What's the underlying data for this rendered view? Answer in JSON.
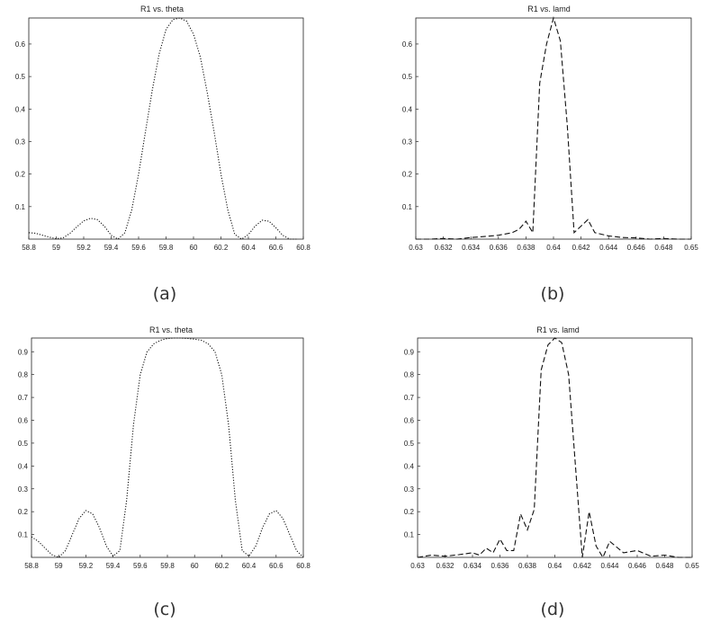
{
  "chart_data": [
    {
      "type": "line",
      "panel_label": "(a)",
      "title": "R1 vs. theta",
      "xlabel": "",
      "ylabel": "",
      "xlim": [
        58.8,
        60.8
      ],
      "ylim": [
        0,
        0.68
      ],
      "xticks": [
        "58.8",
        "59",
        "59.2",
        "59.4",
        "59.6",
        "59.8",
        "60",
        "60.2",
        "60.4",
        "60.6",
        "60.8"
      ],
      "yticks": [
        "0.1",
        "0.2",
        "0.3",
        "0.4",
        "0.5",
        "0.6"
      ],
      "grid": false,
      "series": [
        {
          "line_style": "dotted",
          "x": [
            58.8,
            58.85,
            58.9,
            58.95,
            59.0,
            59.05,
            59.1,
            59.15,
            59.2,
            59.25,
            59.3,
            59.35,
            59.4,
            59.45,
            59.5,
            59.55,
            59.6,
            59.65,
            59.7,
            59.75,
            59.8,
            59.85,
            59.9,
            59.95,
            60.0,
            60.05,
            60.1,
            60.15,
            60.2,
            60.25,
            60.3,
            60.35,
            60.4,
            60.45,
            60.5,
            60.55,
            60.6,
            60.65,
            60.7,
            60.75
          ],
          "y": [
            0.02,
            0.018,
            0.012,
            0.006,
            0.001,
            0.004,
            0.018,
            0.038,
            0.056,
            0.064,
            0.06,
            0.04,
            0.012,
            0.0,
            0.02,
            0.09,
            0.2,
            0.33,
            0.46,
            0.57,
            0.645,
            0.675,
            0.68,
            0.67,
            0.63,
            0.56,
            0.45,
            0.33,
            0.2,
            0.09,
            0.015,
            0.0,
            0.014,
            0.04,
            0.058,
            0.055,
            0.035,
            0.012,
            0.0,
            0.0
          ]
        }
      ]
    },
    {
      "type": "line",
      "panel_label": "(b)",
      "title": "R1 vs. lamd",
      "xlabel": "",
      "ylabel": "",
      "xlim": [
        0.63,
        0.65
      ],
      "ylim": [
        0,
        0.68
      ],
      "xticks": [
        "0.63",
        "0.632",
        "0.634",
        "0.636",
        "0.638",
        "0.64",
        "0.642",
        "0.644",
        "0.646",
        "0.648",
        "0.65"
      ],
      "yticks": [
        "0.1",
        "0.2",
        "0.3",
        "0.4",
        "0.5",
        "0.6"
      ],
      "grid": false,
      "series": [
        {
          "line_style": "dashed",
          "x": [
            0.63,
            0.631,
            0.632,
            0.633,
            0.634,
            0.635,
            0.636,
            0.637,
            0.6375,
            0.638,
            0.6385,
            0.639,
            0.6395,
            0.64,
            0.6405,
            0.641,
            0.6415,
            0.642,
            0.6425,
            0.643,
            0.644,
            0.645,
            0.646,
            0.647,
            0.648,
            0.649,
            0.65
          ],
          "y": [
            0.0,
            0.0,
            0.002,
            0.0,
            0.005,
            0.008,
            0.012,
            0.02,
            0.03,
            0.055,
            0.02,
            0.48,
            0.6,
            0.68,
            0.61,
            0.35,
            0.02,
            0.04,
            0.06,
            0.02,
            0.01,
            0.005,
            0.004,
            0.0,
            0.002,
            0.0,
            0.0
          ]
        }
      ]
    },
    {
      "type": "line",
      "panel_label": "(c)",
      "title": "R1 vs. theta",
      "xlabel": "",
      "ylabel": "",
      "xlim": [
        58.8,
        60.8
      ],
      "ylim": [
        0,
        0.96
      ],
      "xticks": [
        "58.8",
        "59",
        "59.2",
        "59.4",
        "59.6",
        "59.8",
        "60",
        "60.2",
        "60.4",
        "60.6",
        "60.8"
      ],
      "yticks": [
        "0.1",
        "0.2",
        "0.3",
        "0.4",
        "0.5",
        "0.6",
        "0.7",
        "0.8",
        "0.9"
      ],
      "grid": false,
      "series": [
        {
          "line_style": "dotted",
          "x": [
            58.8,
            58.85,
            58.9,
            58.95,
            59.0,
            59.05,
            59.1,
            59.15,
            59.2,
            59.25,
            59.3,
            59.35,
            59.4,
            59.45,
            59.5,
            59.55,
            59.6,
            59.65,
            59.7,
            59.75,
            59.8,
            59.85,
            59.9,
            59.95,
            60.0,
            60.05,
            60.1,
            60.15,
            60.2,
            60.25,
            60.3,
            60.35,
            60.4,
            60.45,
            60.5,
            60.55,
            60.6,
            60.65,
            60.7,
            60.75,
            60.8
          ],
          "y": [
            0.09,
            0.07,
            0.04,
            0.012,
            0.0,
            0.03,
            0.1,
            0.17,
            0.205,
            0.19,
            0.13,
            0.05,
            0.005,
            0.03,
            0.25,
            0.58,
            0.8,
            0.9,
            0.935,
            0.95,
            0.958,
            0.96,
            0.96,
            0.958,
            0.955,
            0.95,
            0.935,
            0.9,
            0.8,
            0.58,
            0.25,
            0.03,
            0.005,
            0.05,
            0.13,
            0.19,
            0.205,
            0.17,
            0.1,
            0.03,
            0.0
          ]
        }
      ]
    },
    {
      "type": "line",
      "panel_label": "(d)",
      "title": "R1 vs. lamd",
      "xlabel": "",
      "ylabel": "",
      "xlim": [
        0.63,
        0.65
      ],
      "ylim": [
        0,
        0.96
      ],
      "xticks": [
        "0.63",
        "0.632",
        "0.634",
        "0.636",
        "0.638",
        "0.64",
        "0.642",
        "0.644",
        "0.646",
        "0.648",
        "0.65"
      ],
      "yticks": [
        "0.1",
        "0.2",
        "0.3",
        "0.4",
        "0.5",
        "0.6",
        "0.7",
        "0.8",
        "0.9"
      ],
      "grid": false,
      "series": [
        {
          "line_style": "dashed",
          "x": [
            0.63,
            0.631,
            0.632,
            0.633,
            0.634,
            0.6345,
            0.635,
            0.6355,
            0.636,
            0.6365,
            0.637,
            0.6375,
            0.638,
            0.6385,
            0.639,
            0.6395,
            0.64,
            0.6405,
            0.641,
            0.6415,
            0.642,
            0.6425,
            0.643,
            0.6435,
            0.644,
            0.645,
            0.646,
            0.647,
            0.648,
            0.649,
            0.65
          ],
          "y": [
            0.0,
            0.01,
            0.005,
            0.012,
            0.02,
            0.01,
            0.04,
            0.02,
            0.08,
            0.03,
            0.03,
            0.19,
            0.12,
            0.21,
            0.82,
            0.93,
            0.96,
            0.94,
            0.8,
            0.4,
            0.0,
            0.2,
            0.05,
            0.0,
            0.07,
            0.02,
            0.03,
            0.005,
            0.01,
            0.0,
            0.0
          ]
        }
      ]
    }
  ]
}
